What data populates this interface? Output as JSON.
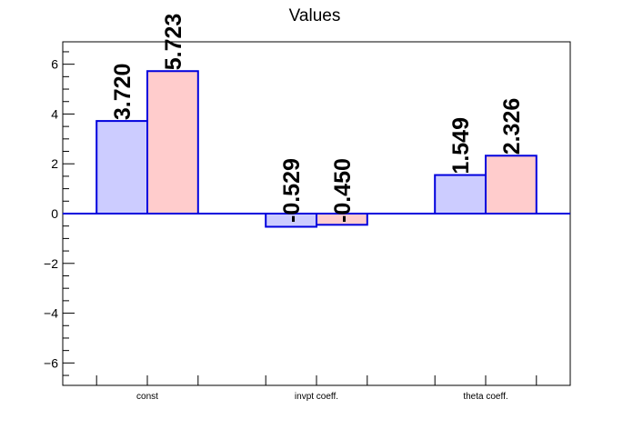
{
  "chart_data": {
    "type": "bar",
    "title": "Values",
    "categories": [
      "const",
      "invpt coeff.",
      "theta coeff."
    ],
    "series": [
      {
        "values": [
          3.72,
          -0.529,
          1.549
        ],
        "value_labels": [
          "3.720",
          "-0.529",
          "1.549"
        ],
        "fill": "#ccccff",
        "stroke": "#0000dd"
      },
      {
        "values": [
          5.723,
          -0.45,
          2.326
        ],
        "value_labels": [
          "5.723",
          "-0.450",
          "2.326"
        ],
        "fill": "#ffcccc",
        "stroke": "#0000dd"
      }
    ],
    "y_ticks": [
      -6,
      -4,
      -2,
      0,
      2,
      4,
      6
    ],
    "y_tick_labels": [
      "−6",
      "−4",
      "−2",
      "0",
      "2",
      "4",
      "6"
    ],
    "ylim": [
      -6.9,
      6.9
    ],
    "grid": false,
    "legend": "none",
    "axis_color": "#000000"
  }
}
